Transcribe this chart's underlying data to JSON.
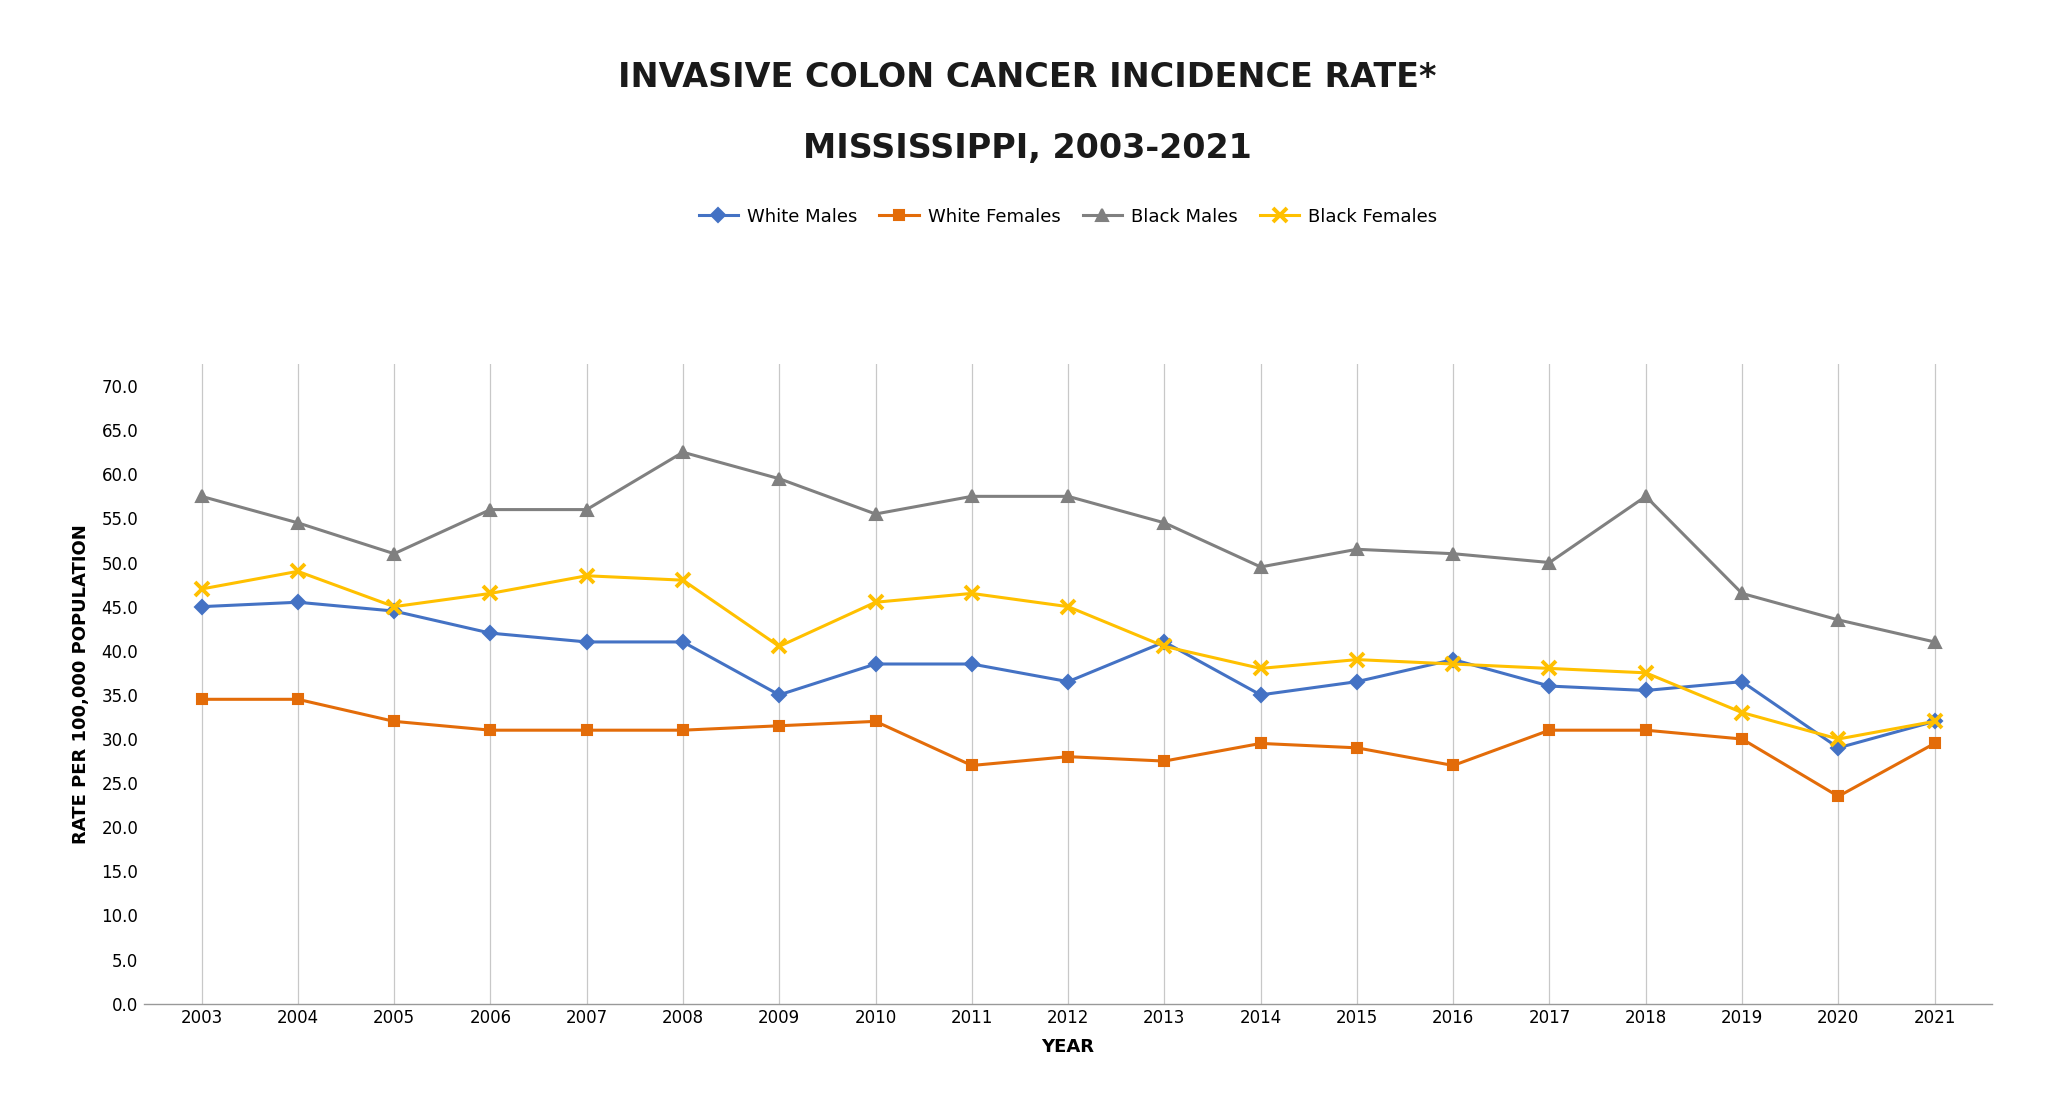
{
  "title_line1": "INVASIVE COLON CANCER INCIDENCE RATE*",
  "title_line2": "MISSISSIPPI, 2003-2021",
  "xlabel": "YEAR",
  "ylabel": "RATE PER 100,000 POPULATION",
  "years": [
    2003,
    2004,
    2005,
    2006,
    2007,
    2008,
    2009,
    2010,
    2011,
    2012,
    2013,
    2014,
    2015,
    2016,
    2017,
    2018,
    2019,
    2020,
    2021
  ],
  "white_males": [
    45.0,
    45.5,
    44.5,
    42.0,
    41.0,
    41.0,
    35.0,
    38.5,
    38.5,
    36.5,
    41.0,
    35.0,
    36.5,
    39.0,
    36.0,
    35.5,
    36.5,
    29.0,
    32.0
  ],
  "white_females": [
    34.5,
    34.5,
    32.0,
    31.0,
    31.0,
    31.0,
    31.5,
    32.0,
    27.0,
    28.0,
    27.5,
    29.5,
    29.0,
    27.0,
    31.0,
    31.0,
    30.0,
    23.5,
    29.5
  ],
  "black_males": [
    57.5,
    54.5,
    51.0,
    56.0,
    56.0,
    62.5,
    59.5,
    55.5,
    57.5,
    57.5,
    54.5,
    49.5,
    51.5,
    51.0,
    50.0,
    57.5,
    46.5,
    43.5,
    41.0
  ],
  "black_females": [
    47.0,
    49.0,
    45.0,
    46.5,
    48.5,
    48.0,
    40.5,
    45.5,
    46.5,
    45.0,
    40.5,
    38.0,
    39.0,
    38.5,
    38.0,
    37.5,
    33.0,
    30.0,
    32.0
  ],
  "series_colors": [
    "#4472C4",
    "#E36C09",
    "#808080",
    "#FFC000"
  ],
  "series_labels": [
    "White Males",
    "White Females",
    "Black Males",
    "Black Females"
  ],
  "ylim": [
    0.0,
    72.5
  ],
  "yticks": [
    0.0,
    5.0,
    10.0,
    15.0,
    20.0,
    25.0,
    30.0,
    35.0,
    40.0,
    45.0,
    50.0,
    55.0,
    60.0,
    65.0,
    70.0
  ],
  "background_color": "#FFFFFF",
  "plot_bg_color": "#FFFFFF",
  "grid_color": "#C8C8C8",
  "title_fontsize": 24,
  "axis_label_fontsize": 13,
  "tick_fontsize": 12,
  "legend_fontsize": 13
}
